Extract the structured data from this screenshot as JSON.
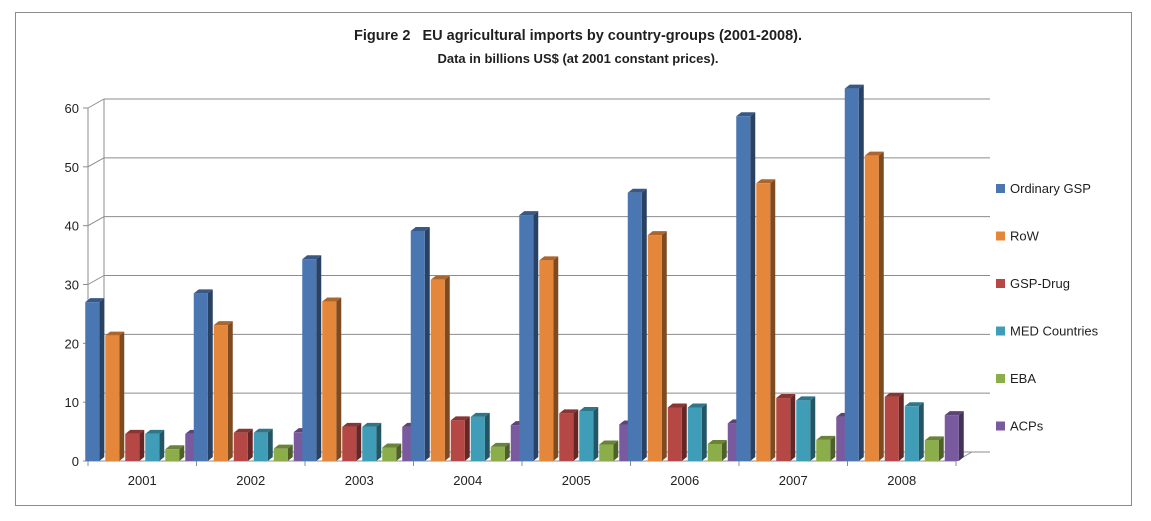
{
  "chart_data": {
    "type": "bar",
    "title": "Figure 2   EU agricultural imports by country-groups (2001-2008).",
    "subtitle": "Data in billions US$ (at 2001 constant prices).",
    "categories": [
      "2001",
      "2002",
      "2003",
      "2004",
      "2005",
      "2006",
      "2007",
      "2008"
    ],
    "ylim": [
      0,
      60
    ],
    "yticks": [
      0,
      10,
      20,
      30,
      40,
      50,
      60
    ],
    "grid": true,
    "legend_position": "right",
    "style": "3d-clustered-column",
    "series": [
      {
        "name": "Ordinary GSP",
        "color": "#4a76b2",
        "values": [
          27,
          28.5,
          34.3,
          39.1,
          41.8,
          45.6,
          58.6,
          63.3
        ]
      },
      {
        "name": "RoW",
        "color": "#e5873b",
        "values": [
          21.3,
          23.1,
          27.1,
          30.8,
          34.1,
          38.4,
          47.2,
          51.9
        ]
      },
      {
        "name": "GSP-Drug",
        "color": "#b54744",
        "values": [
          4.6,
          4.8,
          5.8,
          6.9,
          8.1,
          9.1,
          10.7,
          10.9
        ]
      },
      {
        "name": "MED Countries",
        "color": "#3f9db8",
        "values": [
          4.6,
          4.8,
          5.8,
          7.5,
          8.5,
          9.1,
          10.3,
          9.3
        ]
      },
      {
        "name": "EBA",
        "color": "#8cae4a",
        "values": [
          2,
          2.1,
          2.3,
          2.4,
          2.8,
          2.9,
          3.6,
          3.5
        ]
      },
      {
        "name": "ACPs",
        "color": "#7a5a9e",
        "values": [
          4.6,
          4.9,
          5.8,
          6.1,
          6.2,
          6.4,
          7.5,
          7.8
        ]
      }
    ]
  }
}
